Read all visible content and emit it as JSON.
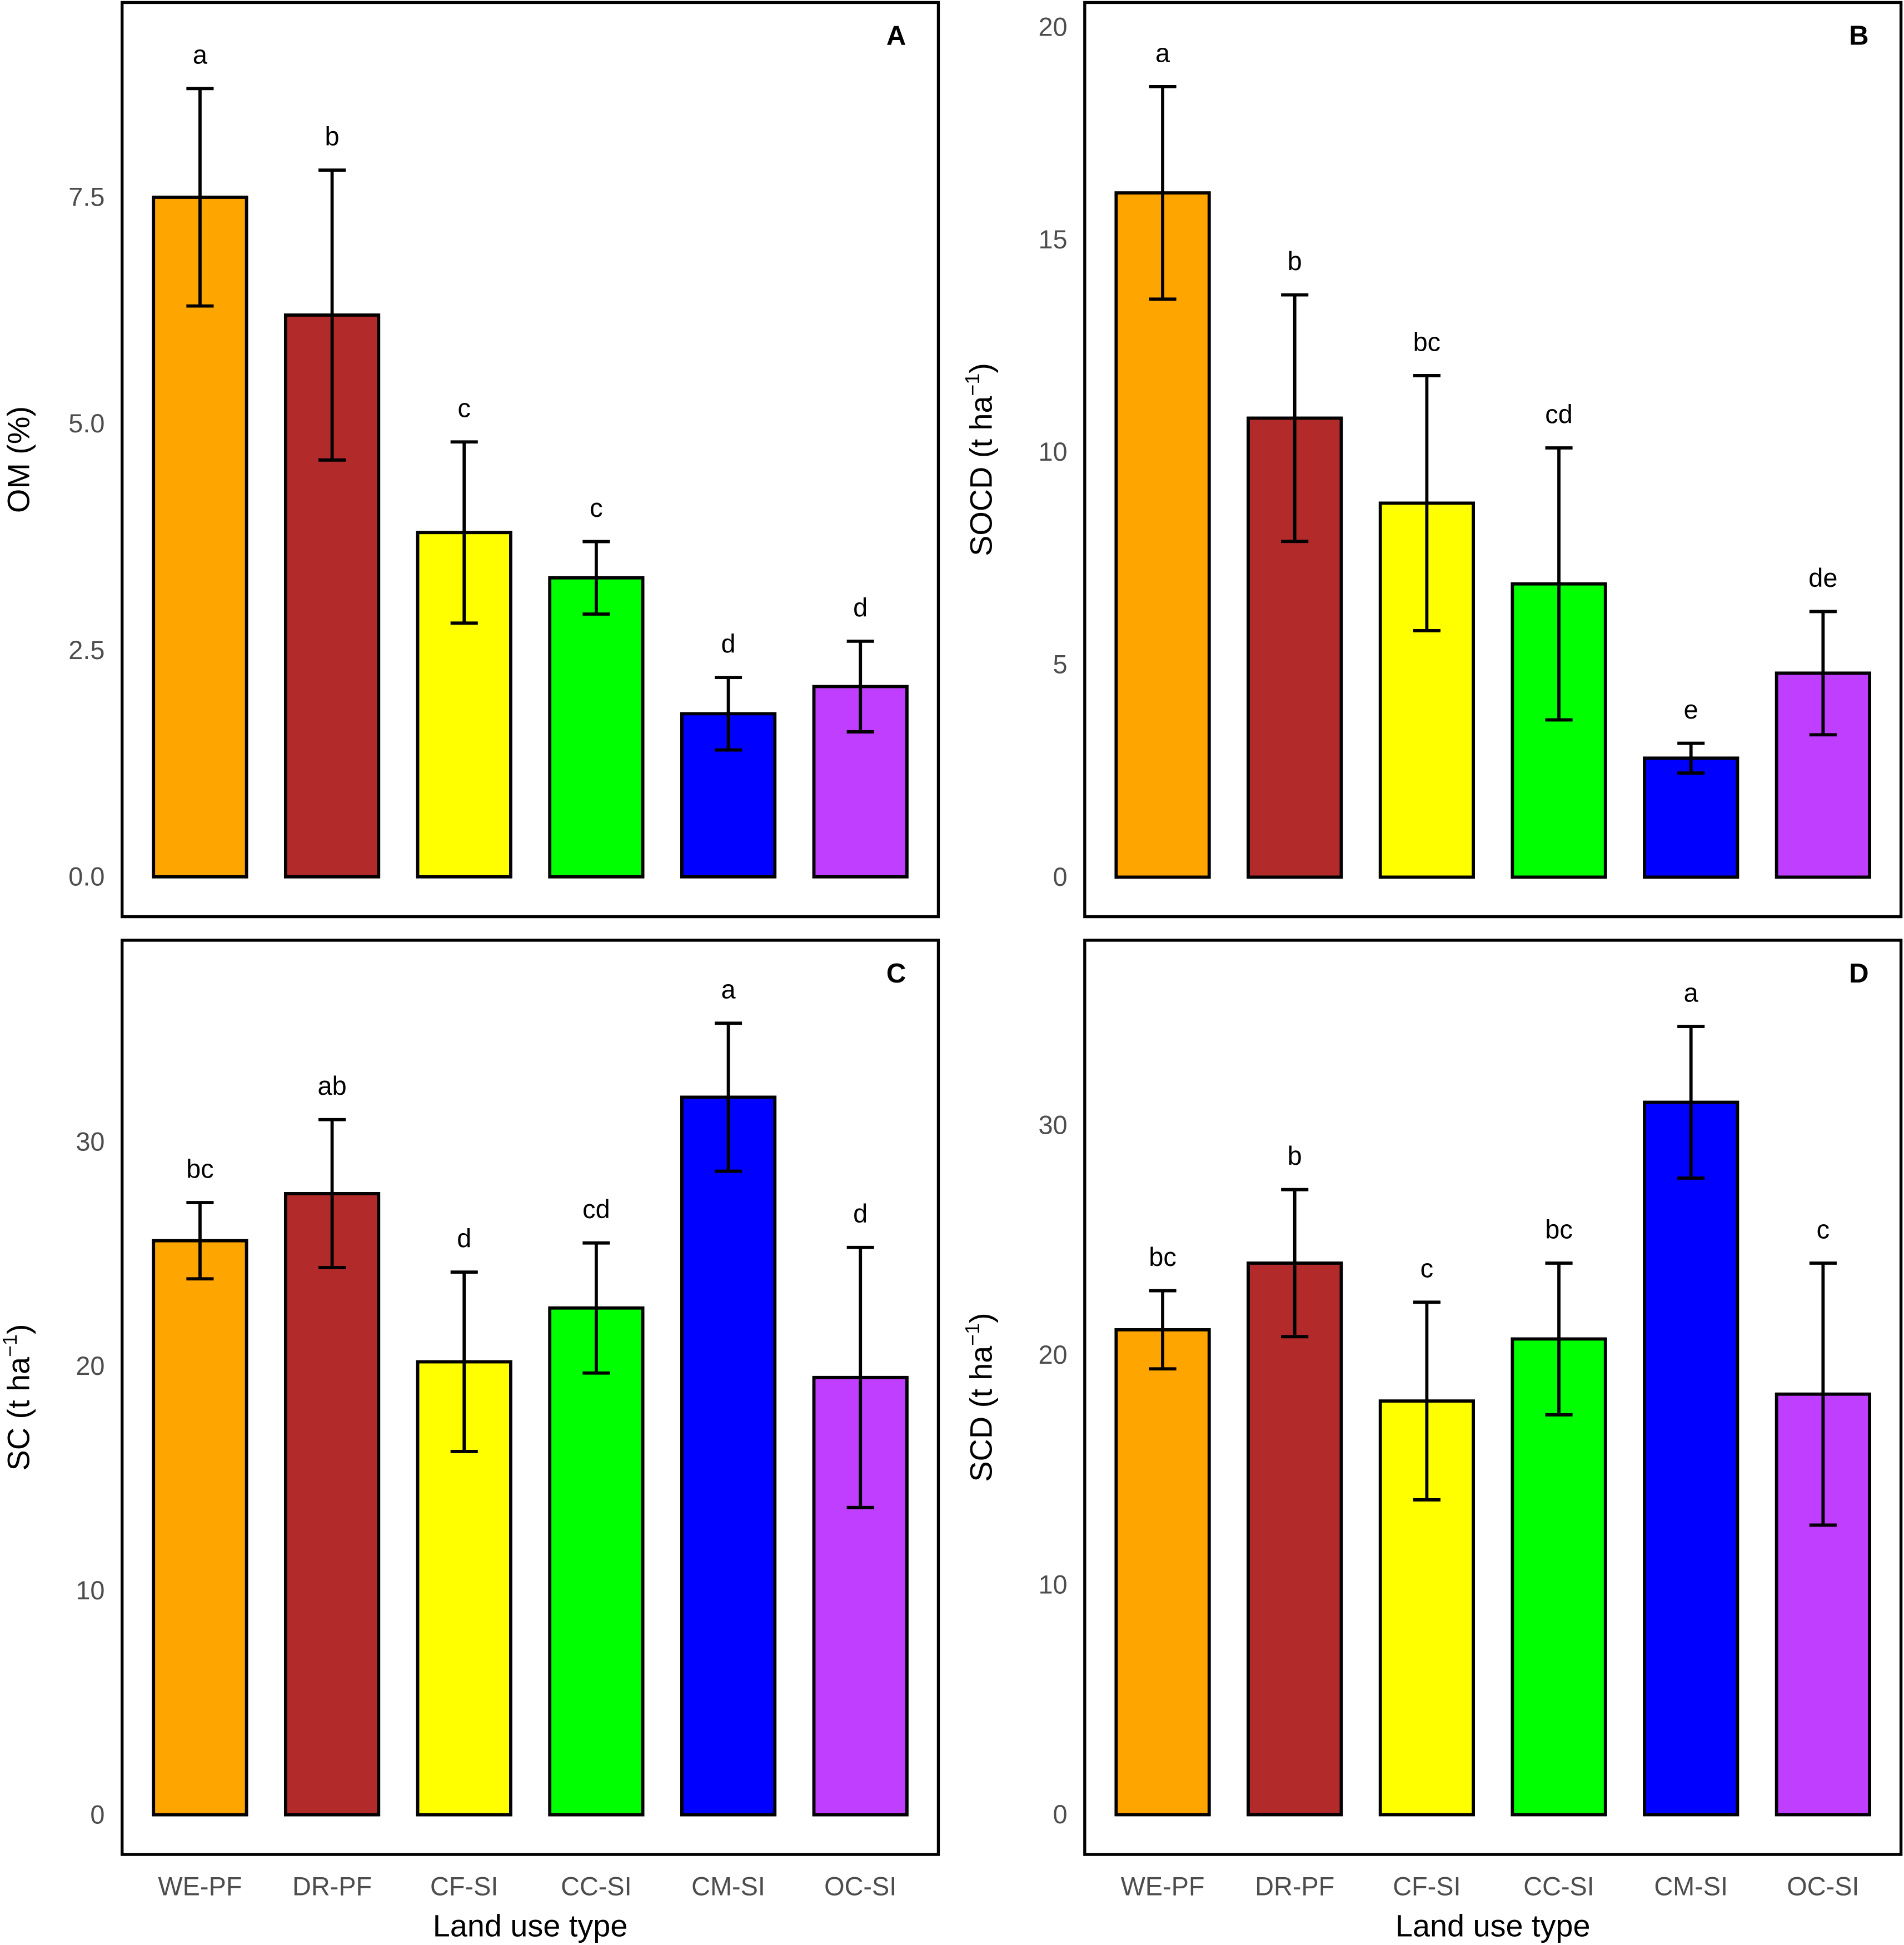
{
  "colors": {
    "WE-PF": "#FFA500",
    "DR-PF": "#B22A2A",
    "CF-SI": "#FFFF00",
    "CC-SI": "#00FF00",
    "CM-SI": "#0000FF",
    "OC-SI": "#BF3EFF"
  },
  "chart_data": [
    {
      "panel": "A",
      "type": "bar",
      "ylabel": "OM (%)",
      "ylabel_sup": "",
      "xlabel": "",
      "categories": [
        "WE-PF",
        "DR-PF",
        "CF-SI",
        "CC-SI",
        "CM-SI",
        "OC-SI"
      ],
      "values": [
        7.5,
        6.2,
        3.8,
        3.3,
        1.8,
        2.1
      ],
      "errors": [
        1.2,
        1.6,
        1.0,
        0.4,
        0.4,
        0.5
      ],
      "letters": [
        "a",
        "b",
        "c",
        "c",
        "d",
        "d"
      ],
      "yticks": [
        0,
        2.5,
        5,
        7.5
      ],
      "ytick_labels": [
        "0.0",
        "2.5",
        "5.0",
        "7.5"
      ],
      "ylim": [
        -0.44,
        9.65
      ],
      "show_xticks": false
    },
    {
      "panel": "B",
      "type": "bar",
      "ylabel": "SOCD (t ha",
      "ylabel_sup": "−1",
      "xlabel": "",
      "categories": [
        "WE-PF",
        "DR-PF",
        "CF-SI",
        "CC-SI",
        "CM-SI",
        "OC-SI"
      ],
      "values": [
        16.1,
        10.8,
        8.8,
        6.9,
        2.8,
        4.8
      ],
      "errors": [
        2.5,
        2.9,
        3.0,
        3.2,
        0.35,
        1.45
      ],
      "letters": [
        "a",
        "b",
        "bc",
        "cd",
        "e",
        "de"
      ],
      "yticks": [
        0,
        5,
        10,
        15,
        20
      ],
      "ytick_labels": [
        "0",
        "5",
        "10",
        "15",
        "20"
      ],
      "ylim": [
        -0.93,
        20.58
      ],
      "show_xticks": false
    },
    {
      "panel": "C",
      "type": "bar",
      "ylabel": "SC (t ha",
      "ylabel_sup": "−1",
      "xlabel": "Land use type",
      "categories": [
        "WE-PF",
        "DR-PF",
        "CF-SI",
        "CC-SI",
        "CM-SI",
        "OC-SI"
      ],
      "values": [
        25.6,
        27.7,
        20.2,
        22.6,
        32.0,
        19.5
      ],
      "errors": [
        1.7,
        3.3,
        4.0,
        2.9,
        3.3,
        5.8
      ],
      "letters": [
        "bc",
        "ab",
        "d",
        "cd",
        "a",
        "d"
      ],
      "yticks": [
        0,
        10,
        20,
        30
      ],
      "ytick_labels": [
        "0",
        "10",
        "20",
        "30"
      ],
      "ylim": [
        -1.77,
        39.0
      ],
      "show_xticks": true
    },
    {
      "panel": "D",
      "type": "bar",
      "ylabel": "SCD (t ha",
      "ylabel_sup": "−1",
      "xlabel": "Land use type",
      "categories": [
        "WE-PF",
        "DR-PF",
        "CF-SI",
        "CC-SI",
        "CM-SI",
        "OC-SI"
      ],
      "values": [
        21.1,
        24.0,
        18.0,
        20.7,
        31.0,
        18.3
      ],
      "errors": [
        1.7,
        3.2,
        4.3,
        3.3,
        3.3,
        5.7
      ],
      "letters": [
        "bc",
        "b",
        "c",
        "bc",
        "a",
        "c"
      ],
      "yticks": [
        0,
        10,
        20,
        30
      ],
      "ytick_labels": [
        "0",
        "10",
        "20",
        "30"
      ],
      "ylim": [
        -1.73,
        38.05
      ],
      "show_xticks": true
    }
  ]
}
